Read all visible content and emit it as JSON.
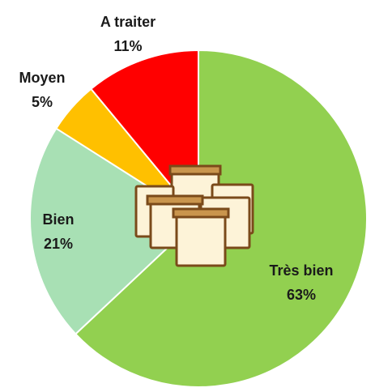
{
  "chart_data": {
    "type": "pie",
    "categories": [
      "Très bien",
      "Bien",
      "Moyen",
      "A traiter"
    ],
    "values": [
      63,
      21,
      5,
      11
    ],
    "value_labels": [
      "63%",
      "21%",
      "5%",
      "11%"
    ],
    "colors": [
      "#92d050",
      "#a8e0b4",
      "#ffc000",
      "#ff0000"
    ]
  }
}
